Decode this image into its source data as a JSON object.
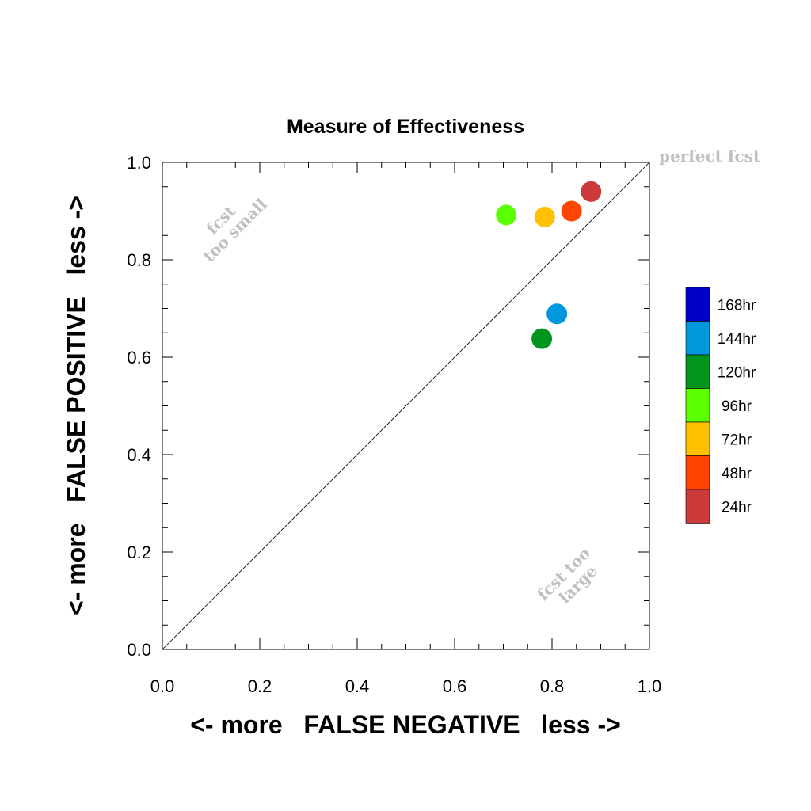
{
  "chart_data": {
    "type": "scatter",
    "title": "Measure of Effectiveness",
    "xlabel": "<- more   FALSE NEGATIVE   less ->",
    "ylabel": "<- more   FALSE POSITIVE   less ->",
    "xlim": [
      0.0,
      1.0
    ],
    "ylim": [
      0.0,
      1.0
    ],
    "xticks": [
      "0.0",
      "0.2",
      "0.4",
      "0.6",
      "0.8",
      "1.0"
    ],
    "yticks": [
      "0.0",
      "0.2",
      "0.4",
      "0.6",
      "0.8",
      "1.0"
    ],
    "grid": false,
    "reference_line": "diagonal y = x",
    "series": [
      {
        "name": "24hr",
        "color": "#cc3a3a",
        "x": [
          0.88
        ],
        "y": [
          0.94
        ]
      },
      {
        "name": "48hr",
        "color": "#ff4400",
        "x": [
          0.84
        ],
        "y": [
          0.9
        ]
      },
      {
        "name": "72hr",
        "color": "#ffc000",
        "x": [
          0.785
        ],
        "y": [
          0.888
        ]
      },
      {
        "name": "96hr",
        "color": "#5cff00",
        "x": [
          0.706
        ],
        "y": [
          0.892
        ]
      },
      {
        "name": "120hr",
        "color": "#00961e",
        "x": [
          0.779
        ],
        "y": [
          0.638
        ]
      },
      {
        "name": "144hr",
        "color": "#0097dd",
        "x": [
          0.81
        ],
        "y": [
          0.689
        ]
      }
    ],
    "legend": {
      "placement": "right",
      "entries": [
        {
          "label": "168hr",
          "color": "#0000c8"
        },
        {
          "label": "144hr",
          "color": "#0097dd"
        },
        {
          "label": "120hr",
          "color": "#00961e"
        },
        {
          "label": "96hr",
          "color": "#5cff00"
        },
        {
          "label": "72hr",
          "color": "#ffc000"
        },
        {
          "label": "48hr",
          "color": "#ff4400"
        },
        {
          "label": "24hr",
          "color": "#cc3a3a"
        }
      ]
    },
    "annotations": {
      "perfect": "perfect fcst",
      "too_small": [
        "fcst",
        "too small"
      ],
      "too_large": [
        "fcst too",
        "large"
      ]
    }
  }
}
